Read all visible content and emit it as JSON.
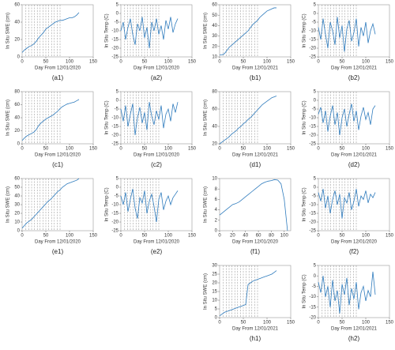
{
  "chart_data": [
    {
      "type": "line",
      "caption": "(a1)",
      "xlabel": "Day From 12/01/2020",
      "ylabel": "In Situ SWE (cm)",
      "color": "#2e7bbd",
      "x": [
        0,
        5,
        10,
        15,
        20,
        25,
        30,
        35,
        40,
        45,
        50,
        55,
        60,
        65,
        70,
        75,
        80,
        85,
        90,
        95,
        100,
        105,
        110,
        115,
        120
      ],
      "values": [
        5,
        8,
        10,
        12,
        13,
        15,
        18,
        22,
        25,
        28,
        32,
        34,
        36,
        38,
        40,
        41,
        42,
        42,
        43,
        44,
        45,
        45,
        46,
        48,
        51
      ],
      "xlim": [
        0,
        150
      ],
      "xticks": [
        0,
        50,
        100,
        150
      ],
      "ylim": [
        0,
        60
      ],
      "yticks": [
        0,
        20,
        40,
        60
      ],
      "vlines": [
        8,
        14,
        20,
        26,
        32,
        38,
        44,
        50,
        56,
        62,
        68,
        74,
        80
      ]
    },
    {
      "type": "line",
      "caption": "(a2)",
      "xlabel": "Day From 12/01/2020",
      "ylabel": "In Situ Temp (C)",
      "color": "#2e7bbd",
      "x": [
        0,
        5,
        10,
        15,
        20,
        25,
        30,
        35,
        40,
        45,
        50,
        55,
        60,
        65,
        70,
        75,
        80,
        85,
        90,
        95,
        100,
        105,
        110,
        115,
        120
      ],
      "values": [
        -10,
        -5,
        -15,
        -8,
        -3,
        -12,
        -18,
        -6,
        -10,
        -2,
        -14,
        -8,
        -20,
        -5,
        -10,
        -3,
        -12,
        -7,
        -15,
        -4,
        -9,
        -2,
        -11,
        -6,
        -3
      ],
      "xlim": [
        0,
        150
      ],
      "xticks": [
        0,
        50,
        100,
        150
      ],
      "ylim": [
        -25,
        5
      ],
      "yticks": [
        -25,
        -20,
        -15,
        -10,
        -5,
        0,
        5
      ],
      "vlines": [
        8,
        14,
        20,
        26,
        32,
        38,
        44,
        50,
        56,
        62,
        68,
        74,
        80
      ]
    },
    {
      "type": "line",
      "caption": "(b1)",
      "xlabel": "Day From 12/01/2021",
      "ylabel": "In Situ SWE (cm)",
      "color": "#2e7bbd",
      "x": [
        0,
        5,
        10,
        15,
        20,
        25,
        30,
        35,
        40,
        45,
        50,
        55,
        60,
        65,
        70,
        75,
        80,
        85,
        90,
        95,
        100,
        105,
        110,
        115,
        120
      ],
      "values": [
        12,
        12,
        13,
        16,
        19,
        21,
        23,
        25,
        27,
        29,
        31,
        33,
        35,
        38,
        41,
        43,
        45,
        48,
        50,
        52,
        54,
        55,
        56,
        57,
        57
      ],
      "xlim": [
        0,
        150
      ],
      "xticks": [
        0,
        50,
        100,
        150
      ],
      "ylim": [
        10,
        60
      ],
      "yticks": [
        10,
        20,
        30,
        40,
        50,
        60
      ],
      "vlines": [
        8,
        14,
        20,
        26,
        32,
        38,
        44,
        50,
        56,
        62,
        68,
        74,
        80
      ]
    },
    {
      "type": "line",
      "caption": "(b2)",
      "xlabel": "Day From 12/01/2021",
      "ylabel": "In Situ Temp (C)",
      "color": "#2e7bbd",
      "x": [
        0,
        5,
        10,
        15,
        20,
        25,
        30,
        35,
        40,
        45,
        50,
        55,
        60,
        65,
        70,
        75,
        80,
        85,
        90,
        95,
        100,
        105,
        110,
        115,
        120
      ],
      "values": [
        -8,
        -15,
        -3,
        -12,
        -20,
        -5,
        -10,
        -18,
        -2,
        -14,
        -7,
        -22,
        -9,
        -4,
        -16,
        -11,
        -3,
        -19,
        -8,
        -13,
        -5,
        -17,
        -10,
        -6,
        -12
      ],
      "xlim": [
        0,
        150
      ],
      "xticks": [
        0,
        50,
        100,
        150
      ],
      "ylim": [
        -25,
        5
      ],
      "yticks": [
        -25,
        -20,
        -15,
        -10,
        -5,
        0,
        5
      ],
      "vlines": [
        8,
        14,
        20,
        26,
        32,
        38,
        44,
        50,
        56,
        62,
        68,
        74,
        80
      ]
    },
    {
      "type": "line",
      "caption": "(c1)",
      "xlabel": "Day From 12/01/2020",
      "ylabel": "In Situ SWE (cm)",
      "color": "#2e7bbd",
      "x": [
        0,
        5,
        10,
        15,
        20,
        25,
        30,
        35,
        40,
        45,
        50,
        55,
        60,
        65,
        70,
        75,
        80,
        85,
        90,
        95,
        100,
        105,
        110,
        115,
        120
      ],
      "values": [
        5,
        9,
        12,
        14,
        16,
        18,
        22,
        28,
        32,
        35,
        38,
        40,
        42,
        44,
        47,
        50,
        54,
        57,
        59,
        61,
        62,
        63,
        64,
        66,
        68
      ],
      "xlim": [
        0,
        150
      ],
      "xticks": [
        0,
        50,
        100,
        150
      ],
      "ylim": [
        0,
        80
      ],
      "yticks": [
        0,
        20,
        40,
        60,
        80
      ],
      "vlines": [
        8,
        14,
        20,
        26,
        32,
        38,
        44,
        50,
        56,
        62,
        68,
        74,
        80
      ]
    },
    {
      "type": "line",
      "caption": "(c2)",
      "xlabel": "Day From 12/01/2020",
      "ylabel": "In Situ Temp (C)",
      "color": "#2e7bbd",
      "x": [
        0,
        5,
        10,
        15,
        20,
        25,
        30,
        35,
        40,
        45,
        50,
        55,
        60,
        65,
        70,
        75,
        80,
        85,
        90,
        95,
        100,
        105,
        110,
        115,
        120
      ],
      "values": [
        -5,
        -12,
        -3,
        -15,
        -8,
        -2,
        -20,
        -10,
        -4,
        -13,
        -7,
        -17,
        -1,
        -9,
        -14,
        -6,
        -11,
        -3,
        -16,
        -8,
        -5,
        -12,
        -2,
        -7,
        -1
      ],
      "xlim": [
        0,
        150
      ],
      "xticks": [
        0,
        50,
        100,
        150
      ],
      "ylim": [
        -25,
        5
      ],
      "yticks": [
        -25,
        -20,
        -15,
        -10,
        -5,
        0,
        5
      ],
      "vlines": [
        8,
        14,
        20,
        26,
        32,
        38,
        44,
        50,
        56,
        62,
        68,
        74,
        80
      ]
    },
    {
      "type": "line",
      "caption": "(d1)",
      "xlabel": "Day From 12/01/2021",
      "ylabel": "In Situ SWE (cm)",
      "color": "#2e7bbd",
      "x": [
        0,
        5,
        10,
        15,
        20,
        25,
        30,
        35,
        40,
        45,
        50,
        55,
        60,
        65,
        70,
        75,
        80,
        85,
        90,
        95,
        100,
        105,
        110,
        115,
        120
      ],
      "values": [
        20,
        22,
        24,
        26,
        28,
        31,
        33,
        35,
        38,
        40,
        43,
        45,
        48,
        50,
        53,
        56,
        59,
        62,
        65,
        67,
        69,
        71,
        73,
        74,
        75
      ],
      "xlim": [
        0,
        150
      ],
      "xticks": [
        0,
        50,
        100,
        150
      ],
      "ylim": [
        20,
        80
      ],
      "yticks": [
        20,
        40,
        60,
        80
      ],
      "vlines": [
        8,
        14,
        20,
        26,
        32,
        38,
        44,
        50,
        56,
        62,
        68,
        74,
        80
      ]
    },
    {
      "type": "line",
      "caption": "(d2)",
      "xlabel": "Day From 12/01/2021",
      "ylabel": "In Situ Temp (C)",
      "color": "#2e7bbd",
      "x": [
        0,
        5,
        10,
        15,
        20,
        25,
        30,
        35,
        40,
        45,
        50,
        55,
        60,
        65,
        70,
        75,
        80,
        85,
        90,
        95,
        100,
        105,
        110,
        115,
        120
      ],
      "values": [
        -8,
        -4,
        -13,
        -6,
        -18,
        -9,
        -3,
        -14,
        -7,
        -20,
        -10,
        -5,
        -15,
        -8,
        -2,
        -12,
        -6,
        -17,
        -9,
        -4,
        -11,
        -7,
        -14,
        -5,
        -3
      ],
      "xlim": [
        0,
        150
      ],
      "xticks": [
        0,
        50,
        100,
        150
      ],
      "ylim": [
        -25,
        5
      ],
      "yticks": [
        -25,
        -20,
        -15,
        -10,
        -5,
        0,
        5
      ],
      "vlines": [
        8,
        14,
        20,
        26,
        32,
        38,
        44,
        50,
        56,
        62,
        68,
        74,
        80
      ]
    },
    {
      "type": "line",
      "caption": "(e1)",
      "xlabel": "Day From 12/01/2020",
      "ylabel": "In Situ SWE (cm)",
      "color": "#2e7bbd",
      "x": [
        0,
        5,
        10,
        15,
        20,
        25,
        30,
        35,
        40,
        45,
        50,
        55,
        60,
        65,
        70,
        75,
        80,
        85,
        90,
        95,
        100,
        105,
        110,
        115,
        120
      ],
      "values": [
        3,
        6,
        9,
        11,
        13,
        16,
        19,
        22,
        25,
        28,
        31,
        34,
        36,
        39,
        42,
        45,
        47,
        50,
        52,
        54,
        55,
        56,
        57,
        58,
        60
      ],
      "xlim": [
        0,
        150
      ],
      "xticks": [
        0,
        50,
        100,
        150
      ],
      "ylim": [
        0,
        60
      ],
      "yticks": [
        0,
        10,
        20,
        30,
        40,
        50,
        60
      ],
      "vlines": [
        8,
        14,
        20,
        26,
        32,
        38,
        44,
        50,
        56,
        62,
        68,
        74,
        80
      ]
    },
    {
      "type": "line",
      "caption": "(e2)",
      "xlabel": "Day From 12/01/2020",
      "ylabel": "In Situ Temp (C)",
      "color": "#2e7bbd",
      "x": [
        0,
        5,
        10,
        15,
        20,
        25,
        30,
        35,
        40,
        45,
        50,
        55,
        60,
        65,
        70,
        75,
        80,
        85,
        90,
        95,
        100,
        105,
        110,
        115,
        120
      ],
      "values": [
        -5,
        -10,
        -3,
        -14,
        -7,
        -1,
        -12,
        -18,
        -6,
        -9,
        -2,
        -15,
        -8,
        -4,
        -11,
        -20,
        -7,
        -3,
        -13,
        -8,
        -5,
        -10,
        -6,
        -4,
        -2
      ],
      "xlim": [
        0,
        150
      ],
      "xticks": [
        0,
        50,
        100,
        150
      ],
      "ylim": [
        -25,
        5
      ],
      "yticks": [
        -25,
        -20,
        -15,
        -10,
        -5,
        0,
        5
      ],
      "vlines": [
        8,
        14,
        20,
        26,
        32,
        38,
        44,
        50,
        56,
        62,
        68,
        74,
        80
      ]
    },
    {
      "type": "line",
      "caption": "(f1)",
      "xlabel": "Day From 12/01/2020",
      "ylabel": "In Situ SWE (cm)",
      "color": "#2e7bbd",
      "x": [
        0,
        5,
        10,
        15,
        20,
        25,
        30,
        35,
        40,
        45,
        50,
        55,
        60,
        65,
        70,
        75,
        80,
        85,
        90,
        95,
        100,
        105
      ],
      "values": [
        3,
        3.5,
        4,
        4.5,
        5,
        5.2,
        5.5,
        6,
        6.5,
        7,
        7.5,
        8,
        8.5,
        9,
        9.3,
        9.5,
        9.6,
        9.8,
        9.7,
        9,
        6,
        0
      ],
      "xlim": [
        0,
        110
      ],
      "xticks": [
        0,
        20,
        40,
        60,
        80,
        100
      ],
      "ylim": [
        0,
        10
      ],
      "yticks": [
        0,
        2,
        4,
        6,
        8,
        10
      ]
    },
    {
      "type": "line",
      "caption": "(f2)",
      "xlabel": "Day From 12/01/2020",
      "ylabel": "In Situ Temp (C)",
      "color": "#2e7bbd",
      "x": [
        0,
        5,
        10,
        15,
        20,
        25,
        30,
        35,
        40,
        45,
        50,
        55,
        60,
        65,
        70,
        75,
        80,
        85,
        90,
        95,
        100,
        105,
        110,
        115,
        120
      ],
      "values": [
        -3,
        -8,
        -1,
        -12,
        -5,
        -15,
        -7,
        -2,
        -10,
        -4,
        -18,
        -6,
        -9,
        -3,
        -13,
        -8,
        -1,
        -11,
        -5,
        -7,
        -2,
        -9,
        -4,
        -6,
        -3
      ],
      "xlim": [
        0,
        150
      ],
      "xticks": [
        0,
        50,
        100,
        150
      ],
      "ylim": [
        -25,
        5
      ],
      "yticks": [
        -25,
        -20,
        -15,
        -10,
        -5,
        0,
        5
      ],
      "vlines": [
        8,
        14,
        20,
        26,
        32,
        38,
        44,
        50,
        56,
        62,
        68,
        74,
        80
      ]
    },
    {
      "type": "line",
      "caption": "(h1)",
      "xlabel": "Day From 12/01/2021",
      "ylabel": "In Situ SWE (cm)",
      "color": "#2e7bbd",
      "x": [
        0,
        5,
        10,
        15,
        20,
        25,
        30,
        35,
        40,
        45,
        50,
        55,
        60,
        65,
        70,
        75,
        80,
        85,
        90,
        95,
        100,
        105,
        110,
        115,
        120
      ],
      "values": [
        1,
        2,
        3,
        3.5,
        4,
        4.5,
        5,
        5.5,
        6,
        6.5,
        7,
        7.5,
        19,
        20,
        21,
        21.5,
        22,
        22.5,
        23,
        23.5,
        24,
        24.5,
        25,
        26,
        27
      ],
      "xlim": [
        0,
        150
      ],
      "xticks": [
        0,
        50,
        100,
        150
      ],
      "ylim": [
        0,
        30
      ],
      "yticks": [
        0,
        5,
        10,
        15,
        20,
        25,
        30
      ],
      "vlines": [
        8,
        14,
        20,
        26,
        32,
        38,
        44,
        50,
        56,
        62,
        68,
        74,
        80
      ]
    },
    {
      "type": "line",
      "caption": "(h2)",
      "xlabel": "Day From 12/01/2021",
      "ylabel": "In Situ Temp (C)",
      "color": "#2e7bbd",
      "x": [
        0,
        5,
        10,
        15,
        20,
        25,
        30,
        35,
        40,
        45,
        50,
        55,
        60,
        65,
        70,
        75,
        80,
        85,
        90,
        95,
        100,
        105,
        110,
        115,
        120
      ],
      "values": [
        -3,
        -8,
        0,
        -10,
        -5,
        -15,
        -2,
        -12,
        -7,
        -18,
        -4,
        -9,
        -1,
        -14,
        -6,
        -11,
        -3,
        -16,
        -8,
        -5,
        -12,
        -7,
        -10,
        2,
        -9
      ],
      "xlim": [
        0,
        150
      ],
      "xticks": [
        0,
        50,
        100,
        150
      ],
      "ylim": [
        -20,
        5
      ],
      "yticks": [
        -20,
        -15,
        -10,
        -5,
        0,
        5
      ],
      "vlines": [
        8,
        14,
        20,
        26,
        32,
        38,
        44,
        50,
        56,
        62,
        68,
        74,
        80
      ]
    }
  ]
}
